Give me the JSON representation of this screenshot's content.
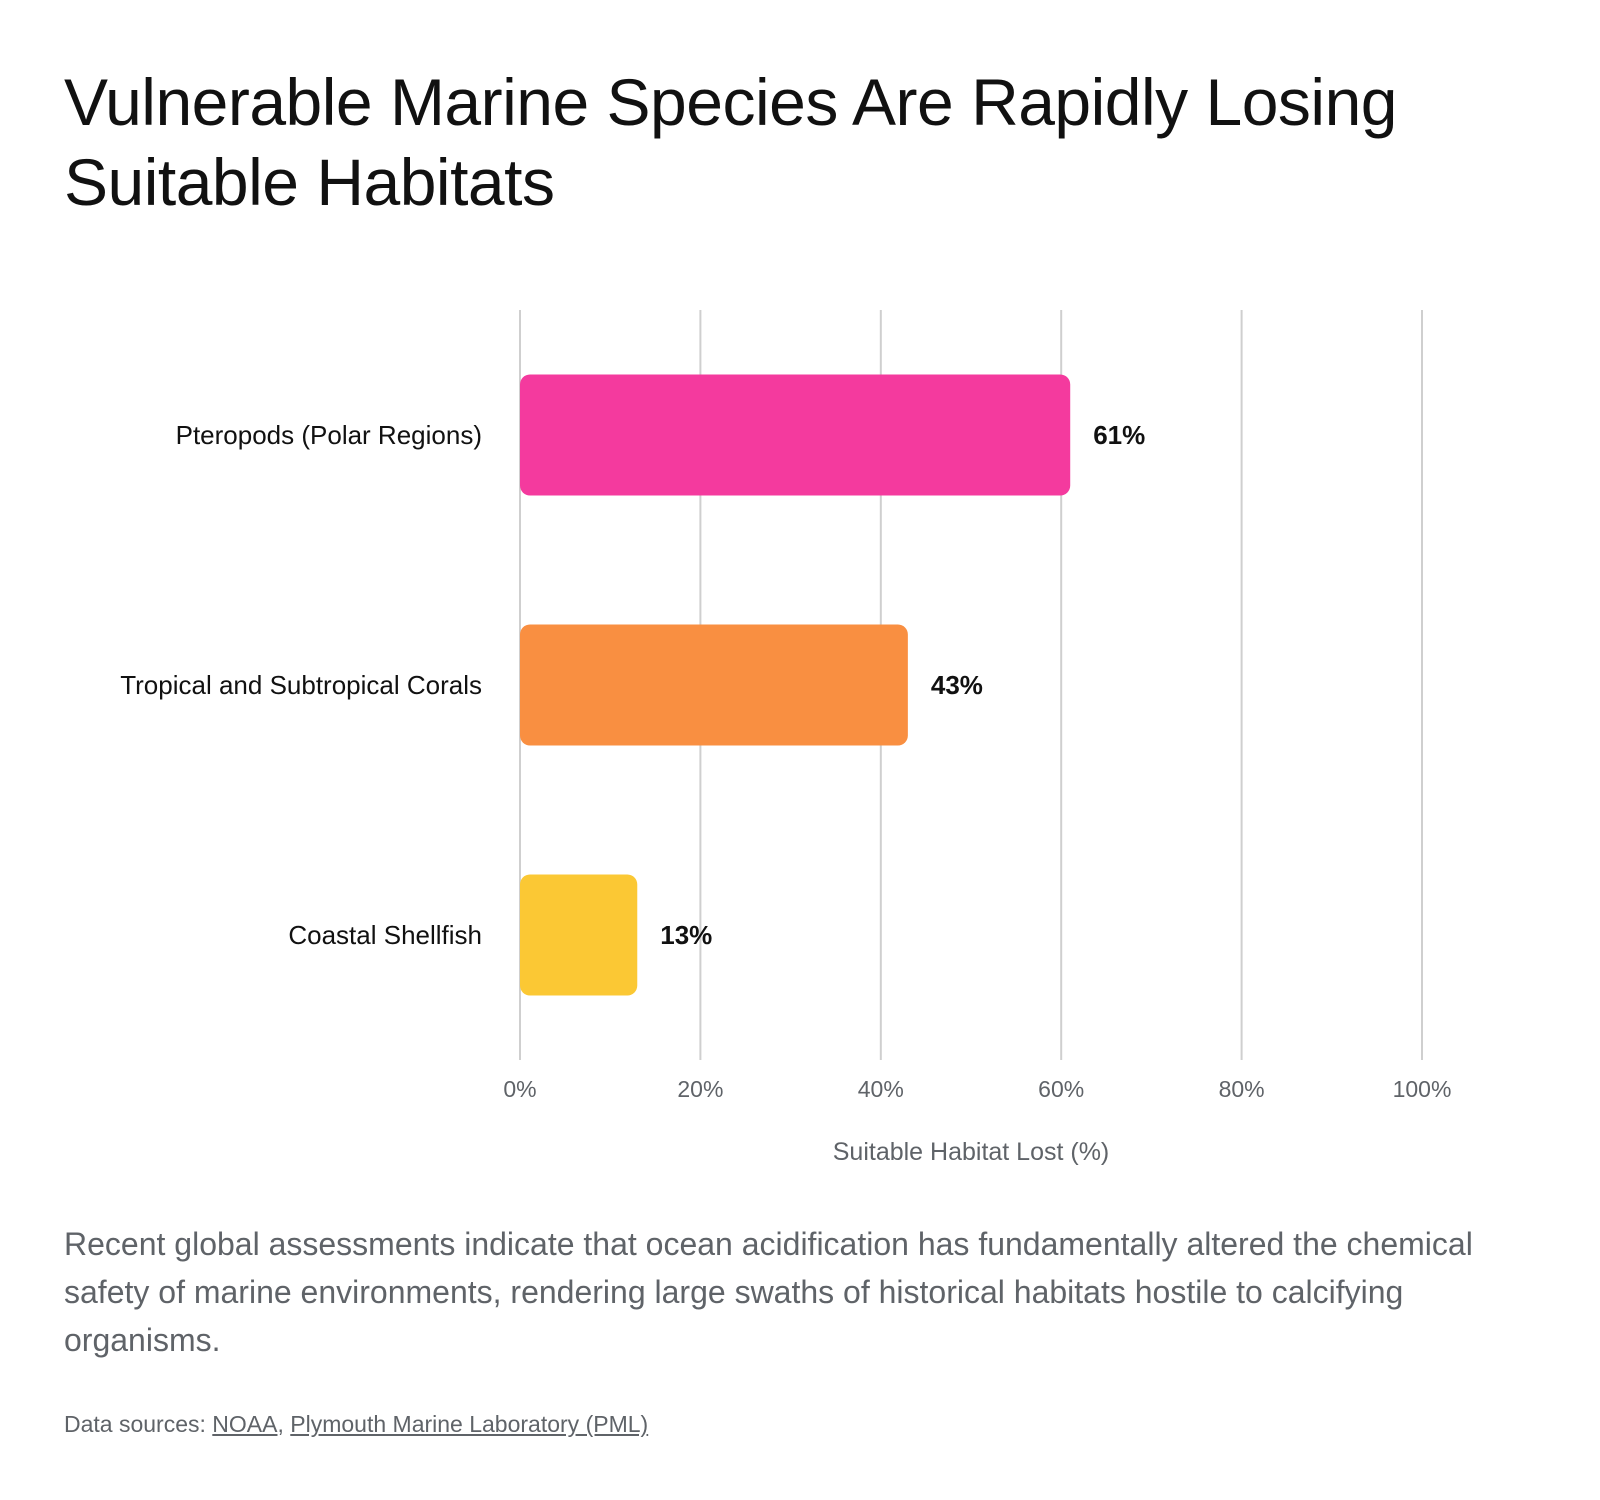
{
  "chart_data": {
    "type": "bar",
    "orientation": "horizontal",
    "title": "Vulnerable Marine Species Are Rapidly Losing Suitable Habitats",
    "xlabel": "Suitable Habitat Lost (%)",
    "ylabel": "",
    "categories": [
      "Pteropods (Polar Regions)",
      "Tropical and Subtropical Corals",
      "Coastal Shellfish"
    ],
    "values": [
      61,
      43,
      13
    ],
    "data_labels": [
      "61%",
      "43%",
      "13%"
    ],
    "colors": [
      "#f43a9e",
      "#f98f41",
      "#fbc834"
    ],
    "xlim": [
      0,
      100
    ],
    "x_ticks": [
      0,
      20,
      40,
      60,
      80,
      100
    ],
    "x_tick_labels": [
      "0%",
      "20%",
      "40%",
      "60%",
      "80%",
      "100%"
    ],
    "grid": "vertical",
    "legend": "none"
  },
  "description": "Recent global assessments indicate that ocean acidification has fundamentally altered the chemical safety of marine environments, rendering large swaths of historical habitats hostile to calcifying organisms.",
  "sources": {
    "prefix": "Data sources:",
    "separator": ",",
    "links": [
      "NOAA",
      "Plymouth Marine Laboratory (PML)"
    ]
  }
}
